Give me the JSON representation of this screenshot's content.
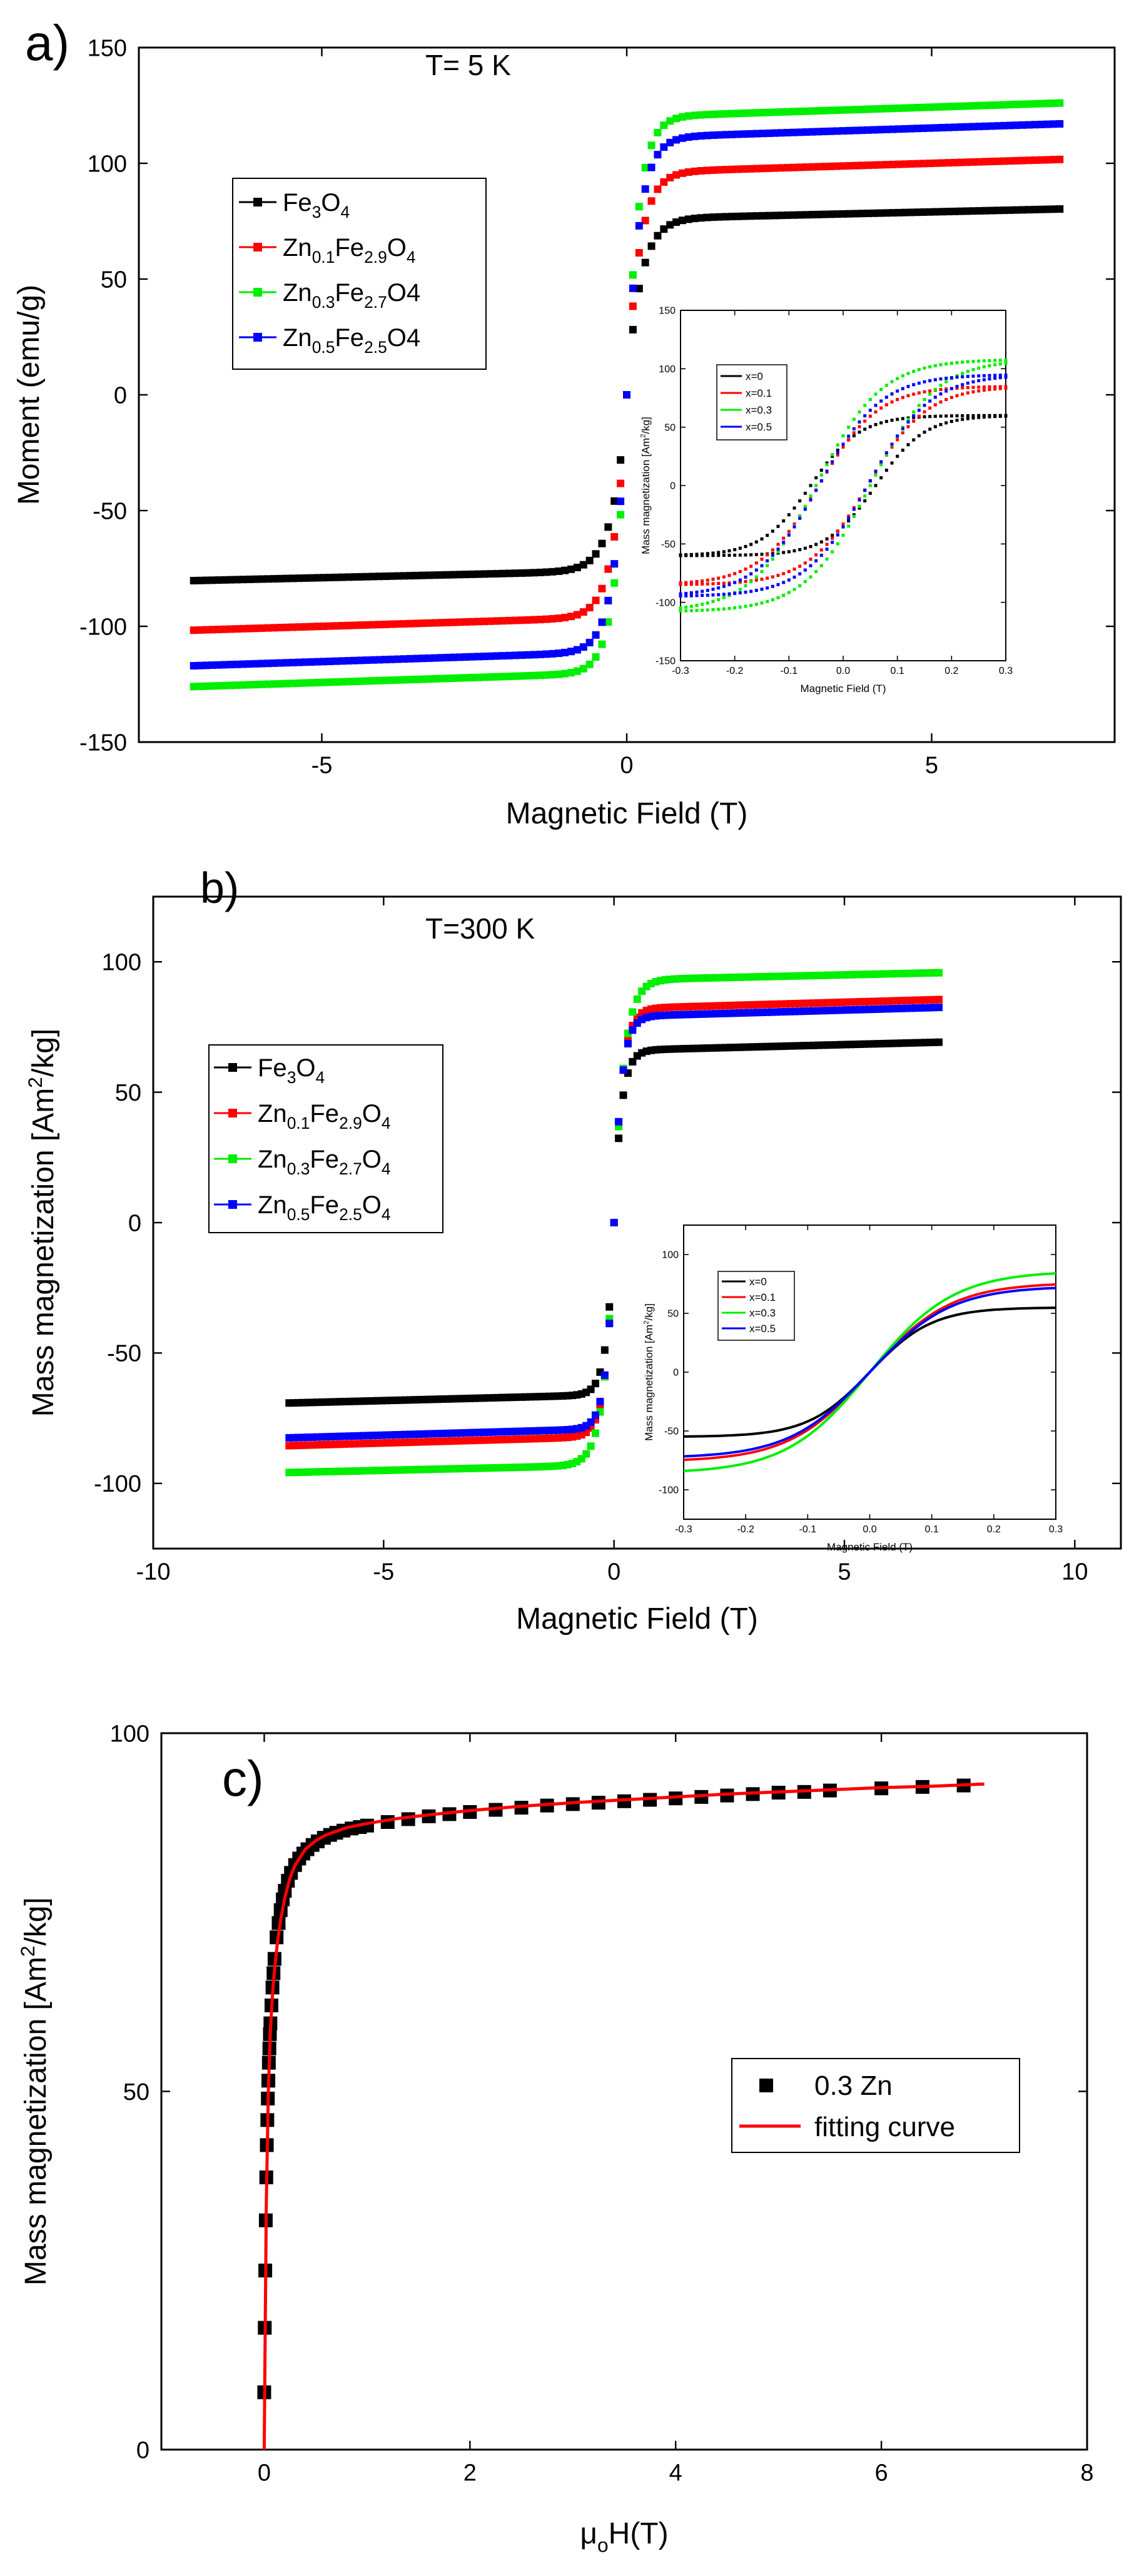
{
  "chart_data": [
    {
      "panel": "a)",
      "type": "scatter",
      "annotation": "T= 5 K",
      "xlabel": "Magnetic Field (T)",
      "ylabel": "Moment (emu/g)",
      "xlim": [
        -8,
        8
      ],
      "ylim": [
        -150,
        150
      ],
      "xticks": [
        -5,
        0,
        5
      ],
      "yticks": [
        -150,
        -100,
        -50,
        0,
        50,
        100,
        150
      ],
      "legend_position": "upper-left",
      "series": [
        {
          "legend": [
            "Fe",
            "3",
            "O",
            "4"
          ],
          "color": "#000000",
          "ms": 76,
          "chi": 0.6,
          "H0": 0.22
        },
        {
          "legend": [
            "Zn",
            "0.1",
            "Fe",
            "2.9",
            "O",
            "4"
          ],
          "color": "#ff0000",
          "ms": 96,
          "chi": 0.8,
          "H0": 0.2
        },
        {
          "legend": [
            "Zn",
            "0.3",
            "Fe",
            "2.7",
            "O4",
            ""
          ],
          "color": "#00ee00",
          "ms": 120,
          "chi": 0.85,
          "H0": 0.18
        },
        {
          "legend": [
            "Zn",
            "0.5",
            "Fe",
            "2.5",
            "O4",
            ""
          ],
          "color": "#0000ff",
          "ms": 111,
          "chi": 0.85,
          "H0": 0.19
        }
      ],
      "inset": {
        "type": "line",
        "xlabel": "Magnetic Field (T)",
        "ylabel": [
          "Mass magnetization [Am",
          "2",
          "/kg]"
        ],
        "xlim": [
          -0.3,
          0.3
        ],
        "ylim": [
          -150,
          150
        ],
        "xticks": [
          -0.3,
          -0.2,
          -0.1,
          0.0,
          0.1,
          0.2,
          0.3
        ],
        "xticklabels": [
          "-0.3",
          "-0.2",
          "-0.1",
          "0.0",
          "0.1",
          "0.2",
          "0.3"
        ],
        "yticks": [
          -150,
          -100,
          -50,
          0,
          50,
          100,
          150
        ],
        "legend_position": "upper-left",
        "series": [
          {
            "name": "x=0",
            "color": "#000000",
            "ms": 60,
            "w": 0.09,
            "hc": 0.06
          },
          {
            "name": "x=0.1",
            "color": "#ff0000",
            "ms": 85,
            "w": 0.11,
            "hc": 0.045
          },
          {
            "name": "x=0.3",
            "color": "#00ee00",
            "ms": 108,
            "w": 0.12,
            "hc": 0.05
          },
          {
            "name": "x=0.5",
            "color": "#0000ff",
            "ms": 95,
            "w": 0.115,
            "hc": 0.045
          }
        ]
      }
    },
    {
      "panel": "b)",
      "type": "scatter",
      "annotation": "T=300 K",
      "xlabel": "Magnetic Field (T)",
      "ylabel": [
        "Mass magnetization [Am",
        "2",
        "/kg]"
      ],
      "xlim": [
        -10,
        11
      ],
      "ylim": [
        -125,
        125
      ],
      "xticks": [
        -10,
        -5,
        0,
        5,
        10
      ],
      "yticks": [
        -100,
        -50,
        0,
        50,
        100
      ],
      "legend_position": "middle-left",
      "series": [
        {
          "legend": [
            "Fe",
            "3",
            "O",
            "4"
          ],
          "color": "#000000",
          "ms": 66,
          "chi": 0.45,
          "H0": 0.15
        },
        {
          "legend": [
            "Zn",
            "0.1",
            "Fe",
            "2.9",
            "O",
            "4"
          ],
          "color": "#ff0000",
          "ms": 82,
          "chi": 0.5,
          "H0": 0.16
        },
        {
          "legend": [
            "Zn",
            "0.3",
            "Fe",
            "2.7",
            "O",
            "4"
          ],
          "color": "#00ee00",
          "ms": 93,
          "chi": 0.4,
          "H0": 0.2
        },
        {
          "legend": [
            "Zn",
            "0.5",
            "Fe",
            "2.5",
            "O",
            "4"
          ],
          "color": "#0000ff",
          "ms": 79,
          "chi": 0.5,
          "H0": 0.15
        }
      ],
      "inset": {
        "type": "line",
        "xlabel": "Magnetic Field (T)",
        "ylabel": [
          "Mass magnetization [Am",
          "2",
          "/kg]"
        ],
        "xlim": [
          -0.3,
          0.3
        ],
        "ylim": [
          -125,
          125
        ],
        "xticks": [
          -0.3,
          -0.2,
          -0.1,
          0.0,
          0.1,
          0.2,
          0.3
        ],
        "xticklabels": [
          "-0.3",
          "-0.2",
          "-0.1",
          "0.0",
          "0.1",
          "0.2",
          "0.3"
        ],
        "yticks": [
          -100,
          -50,
          0,
          50,
          100
        ],
        "legend_position": "upper-left",
        "series": [
          {
            "name": "x=0",
            "color": "#000000",
            "ms": 55,
            "w": 0.1
          },
          {
            "name": "x=0.1",
            "color": "#ff0000",
            "ms": 76,
            "w": 0.13
          },
          {
            "name": "x=0.3",
            "color": "#00ee00",
            "ms": 86,
            "w": 0.135
          },
          {
            "name": "x=0.5",
            "color": "#0000ff",
            "ms": 73,
            "w": 0.13
          }
        ]
      }
    },
    {
      "panel": "c)",
      "type": "scatter",
      "xlabel": [
        "μ",
        "o",
        "H(T)"
      ],
      "ylabel": [
        "Mass magnetization [Am",
        "2",
        "/kg]"
      ],
      "xlim": [
        -1,
        8
      ],
      "ylim": [
        0,
        100
      ],
      "xticks": [
        0,
        2,
        4,
        6,
        8
      ],
      "yticks": [
        0,
        50,
        100
      ],
      "legend_position": "middle-right",
      "series": [
        {
          "name": "0.3 Zn",
          "color": "#000000",
          "marker": "square",
          "x": [
            0.0,
            0.005,
            0.01,
            0.015,
            0.02,
            0.025,
            0.03,
            0.035,
            0.04,
            0.045,
            0.05,
            0.055,
            0.06,
            0.07,
            0.08,
            0.09,
            0.1,
            0.12,
            0.14,
            0.16,
            0.18,
            0.2,
            0.23,
            0.26,
            0.3,
            0.34,
            0.38,
            0.42,
            0.47,
            0.52,
            0.58,
            0.64,
            0.7,
            0.77,
            0.85,
            0.93,
            1.0,
            1.2,
            1.4,
            1.6,
            1.8,
            2.0,
            2.25,
            2.5,
            2.75,
            3.0,
            3.25,
            3.5,
            3.75,
            4.0,
            4.25,
            4.5,
            4.75,
            5.0,
            5.25,
            5.5,
            6.0,
            6.4,
            6.8
          ],
          "y": [
            8,
            17,
            25,
            32,
            38,
            42.5,
            46,
            49,
            51.5,
            54,
            56,
            58,
            59.5,
            62,
            64.5,
            66.5,
            68.5,
            71.5,
            73.5,
            75.3,
            76.8,
            78,
            79.4,
            80.5,
            81.6,
            82.5,
            83.2,
            83.8,
            84.4,
            84.9,
            85.4,
            85.8,
            86.1,
            86.4,
            86.7,
            86.9,
            87.1,
            87.6,
            88.0,
            88.4,
            88.7,
            89.0,
            89.3,
            89.6,
            89.9,
            90.1,
            90.3,
            90.5,
            90.7,
            90.9,
            91.1,
            91.3,
            91.5,
            91.7,
            91.8,
            92.0,
            92.3,
            92.5,
            92.7
          ]
        },
        {
          "name": "fitting curve",
          "color": "#ff0000",
          "marker": "line",
          "x": [
            0.0,
            0.02,
            0.04,
            0.06,
            0.08,
            0.1,
            0.13,
            0.16,
            0.2,
            0.25,
            0.3,
            0.4,
            0.5,
            0.6,
            0.8,
            1.0,
            1.3,
            1.6,
            2.0,
            2.5,
            3.0,
            3.5,
            4.0,
            4.5,
            5.0,
            5.5,
            6.0,
            6.5,
            7.0
          ],
          "y": [
            0,
            34,
            50,
            58.5,
            63.5,
            67,
            71,
            74,
            77,
            79.8,
            81.6,
            83.8,
            85.0,
            85.8,
            86.8,
            87.4,
            88.1,
            88.6,
            89.2,
            89.8,
            90.3,
            90.7,
            91.1,
            91.5,
            91.8,
            92.1,
            92.4,
            92.6,
            92.9
          ]
        }
      ]
    }
  ]
}
